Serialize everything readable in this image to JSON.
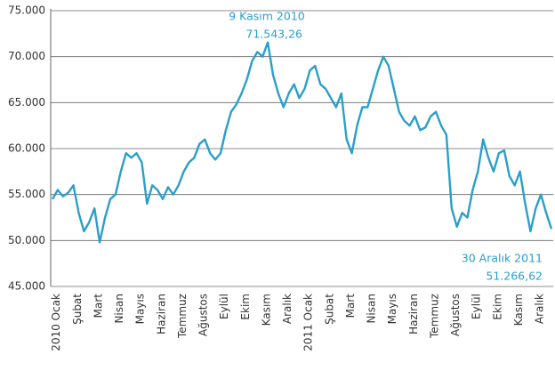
{
  "chart_data": {
    "type": "line",
    "annotations": [
      {
        "text": "9 Kasım 2010",
        "value": "71.543,26"
      },
      {
        "text": "30 Aralık 2011",
        "value": "51.266,62"
      }
    ],
    "categories": [
      "2010 Ocak",
      null,
      null,
      null,
      "Şubat",
      null,
      null,
      null,
      "Mart",
      null,
      null,
      null,
      "Nisan",
      null,
      null,
      null,
      "Mayıs",
      null,
      null,
      null,
      "Haziran",
      null,
      null,
      null,
      "Temmuz",
      null,
      null,
      null,
      "Ağustos",
      null,
      null,
      null,
      "Eylül",
      null,
      null,
      null,
      "Ekim",
      null,
      null,
      null,
      "Kasım",
      null,
      null,
      null,
      "Aralık",
      null,
      null,
      null,
      "2011 Ocak",
      null,
      null,
      null,
      "Şubat",
      null,
      null,
      null,
      "Mart",
      null,
      null,
      null,
      "Nisan",
      null,
      null,
      null,
      "Mayıs",
      null,
      null,
      null,
      "Haziran",
      null,
      null,
      null,
      "Temmuz",
      null,
      null,
      null,
      "Ağustos",
      null,
      null,
      null,
      "Eylül",
      null,
      null,
      null,
      "Ekim",
      null,
      null,
      null,
      "Kasım",
      null,
      null,
      null,
      "Aralık",
      null,
      null,
      null
    ],
    "series": [
      {
        "color": "#2a9fc9",
        "values": [
          54500,
          55500,
          54800,
          55200,
          56000,
          53000,
          51000,
          52000,
          53500,
          49800,
          52500,
          54500,
          55000,
          57500,
          59500,
          59000,
          59500,
          58500,
          54000,
          56000,
          55500,
          54500,
          55800,
          55000,
          56000,
          57500,
          58500,
          59000,
          60500,
          61000,
          59500,
          58800,
          59500,
          62000,
          64000,
          64800,
          66000,
          67500,
          69500,
          70500,
          70000,
          71543.26,
          68000,
          66000,
          64500,
          66000,
          67000,
          65500,
          66500,
          68500,
          69000,
          67000,
          66500,
          65500,
          64500,
          66000,
          61000,
          59500,
          62500,
          64500,
          64500,
          66500,
          68500,
          70000,
          69000,
          66500,
          64000,
          63000,
          62500,
          63500,
          62000,
          62300,
          63500,
          64000,
          62500,
          61500,
          53500,
          51500,
          53000,
          52500,
          55500,
          57500,
          61000,
          59000,
          57500,
          59500,
          59800,
          57000,
          56000,
          57500,
          54000,
          51000,
          53500,
          55000,
          53000,
          51266.62
        ]
      }
    ],
    "ylim": [
      45000,
      75000
    ],
    "yticks": [
      {
        "value": 45000,
        "label": "45.000"
      },
      {
        "value": 50000,
        "label": "50.000"
      },
      {
        "value": 55000,
        "label": "55.000"
      },
      {
        "value": 60000,
        "label": "60.000"
      },
      {
        "value": 65000,
        "label": "65.000"
      },
      {
        "value": 70000,
        "label": "70.000"
      },
      {
        "value": 75000,
        "label": "75.000"
      }
    ],
    "grid": true
  }
}
